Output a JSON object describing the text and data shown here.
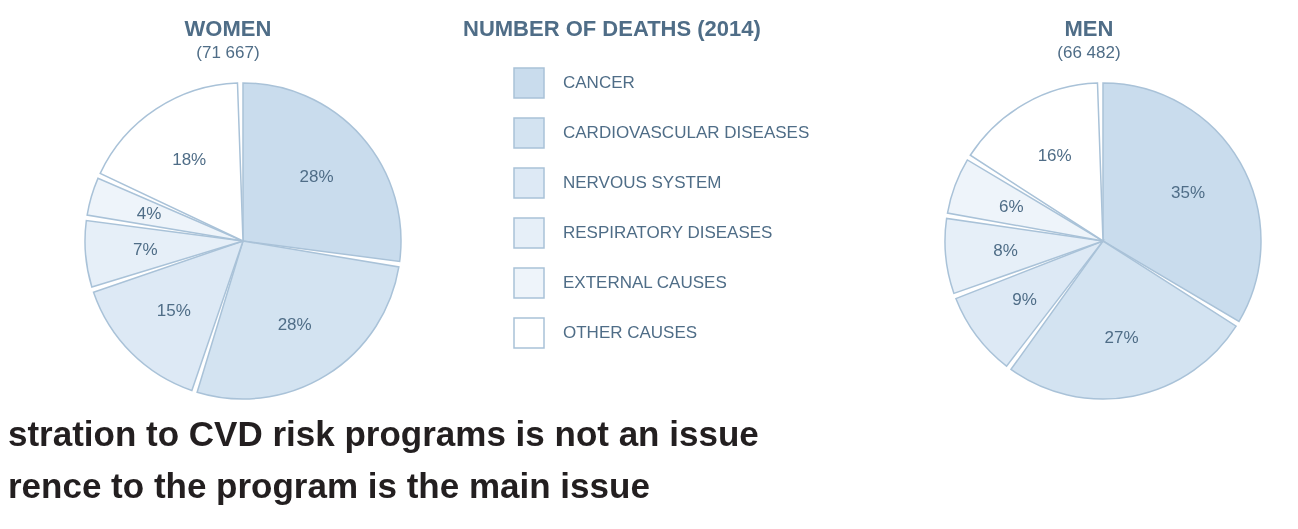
{
  "chart_data": [
    {
      "type": "pie",
      "title": "WOMEN",
      "subtitle": "(71 667)",
      "legend_title": "NUMBER OF DEATHS (2014)",
      "legend": "right",
      "categories": [
        "CANCER",
        "CARDIOVASCULAR DISEASES",
        "NERVOUS SYSTEM",
        "RESPIRATORY DISEASES",
        "EXTERNAL CAUSES",
        "OTHER CAUSES"
      ],
      "values": [
        28,
        28,
        15,
        7,
        4,
        18
      ],
      "value_labels": [
        "28%",
        "28%",
        "15%",
        "7%",
        "4%",
        "18%"
      ],
      "colors": [
        "#c9dced",
        "#d3e3f1",
        "#dde9f5",
        "#e6eff8",
        "#eef4fa",
        "#ffffff"
      ],
      "annotations": [
        "stration to CVD risk programs is not an issue",
        "rence to the program is the main issue"
      ]
    },
    {
      "type": "pie",
      "title": "MEN",
      "subtitle": "(66 482)",
      "categories": [
        null,
        null,
        null,
        null,
        null,
        null
      ],
      "values": [
        35,
        27,
        9,
        8,
        6,
        16
      ],
      "value_labels": [
        "35%",
        "27%",
        "9%",
        "8%",
        "6%",
        "16%"
      ],
      "colors": [
        "#c9dced",
        "#d3e3f1",
        "#dde9f5",
        "#e6eff8",
        "#eef4fa",
        "#ffffff"
      ]
    }
  ]
}
